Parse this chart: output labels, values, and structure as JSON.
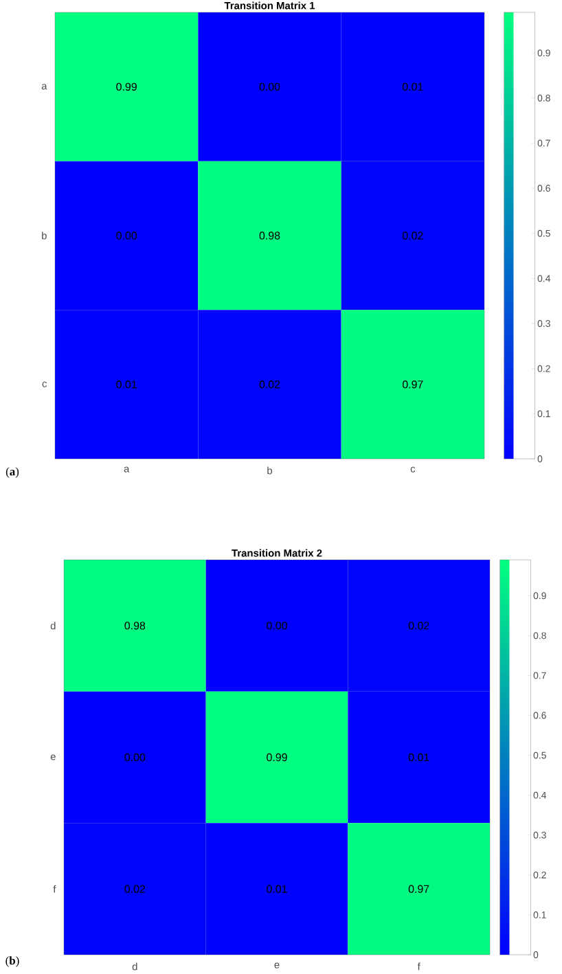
{
  "chart_data": [
    {
      "type": "heatmap",
      "title": "Transition Matrix 1",
      "categories": [
        "a",
        "b",
        "c"
      ],
      "y_categories": [
        "a",
        "b",
        "c"
      ],
      "cells": [
        [
          0.99,
          0.0,
          0.01
        ],
        [
          0.0,
          0.98,
          0.02
        ],
        [
          0.01,
          0.02,
          0.97
        ]
      ],
      "cell_labels": [
        [
          "0.99",
          "0.00",
          "0.01"
        ],
        [
          "0.00",
          "0.98",
          "0.02"
        ],
        [
          "0.01",
          "0.02",
          "0.97"
        ]
      ],
      "clim": [
        0,
        0.99
      ],
      "cticks": [
        0,
        0.1,
        0.2,
        0.3,
        0.4,
        0.5,
        0.6,
        0.7,
        0.8,
        0.9
      ],
      "annotations": [
        "(**a**)"
      ]
    },
    {
      "type": "heatmap",
      "title": "Transition Matrix 2",
      "categories": [
        "d",
        "e",
        "f"
      ],
      "y_categories": [
        "d",
        "e",
        "f"
      ],
      "cells": [
        [
          0.98,
          0.0,
          0.02
        ],
        [
          0.0,
          0.99,
          0.01
        ],
        [
          0.02,
          0.01,
          0.97
        ]
      ],
      "cell_labels": [
        [
          "0.98",
          "0.00",
          "0.02"
        ],
        [
          "0.00",
          "0.99",
          "0.01"
        ],
        [
          "0.02",
          "0.01",
          "0.97"
        ]
      ],
      "clim": [
        0,
        0.99
      ],
      "cticks": [
        0,
        0.1,
        0.2,
        0.3,
        0.4,
        0.5,
        0.6,
        0.7,
        0.8,
        0.9
      ],
      "annotations": [
        "(**b**)"
      ]
    }
  ]
}
